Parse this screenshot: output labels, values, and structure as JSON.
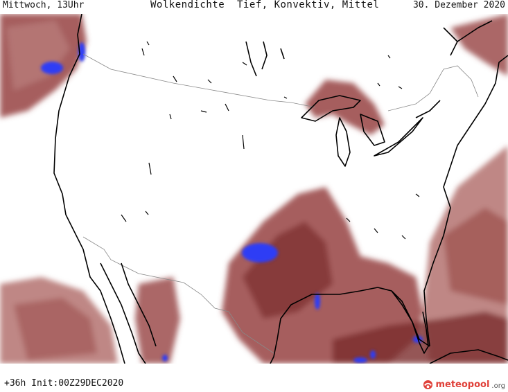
{
  "header": {
    "left": "Mittwoch, 13Uhr",
    "center": "Wolkendichte  Tief, Konvektiv, Mittel",
    "right": "30. Dezember 2020"
  },
  "footer": {
    "run_info": "+36h Init:00Z29DEC2020",
    "brand_name": "meteopool",
    "brand_tld": ".org",
    "brand_icon": "meteopool-logo-icon"
  },
  "legend_colors": {
    "cloud_low": "#b87a78",
    "cloud_mid": "#9c4e4d",
    "cloud_high": "#7a2c2d",
    "convective": "#2e3cf5",
    "coastline": "#000000",
    "border": "#888888"
  }
}
